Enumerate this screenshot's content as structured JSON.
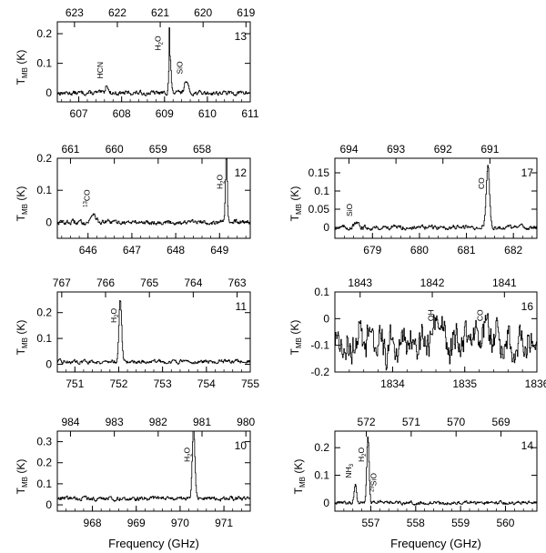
{
  "figure": {
    "xlabel": "Frequency (GHz)",
    "ylabel_main": "T",
    "ylabel_sub": "MB",
    "ylabel_unit": "(K)"
  },
  "chart_data": [
    {
      "id": "panel-13",
      "type": "line",
      "band": "13",
      "xlim": [
        606.5,
        611
      ],
      "ylim": [
        -0.03,
        0.24
      ],
      "xticks": [
        607,
        608,
        609,
        610,
        611
      ],
      "yticks": [
        0,
        0.1,
        0.2
      ],
      "yticklabels": [
        "0",
        "0.1",
        "0.2"
      ],
      "top_ticks": [
        {
          "label": "623",
          "x": 606.9
        },
        {
          "label": "622",
          "x": 607.9
        },
        {
          "label": "621",
          "x": 608.9
        },
        {
          "label": "620",
          "x": 609.9
        },
        {
          "label": "619",
          "x": 610.9
        }
      ],
      "baseline": 0,
      "noise": 0.006,
      "lines": [
        {
          "x": 607.65,
          "peak": 0.03,
          "width": 0.03,
          "label": "HCN"
        },
        {
          "x": 609.12,
          "peak": 0.125,
          "width": 0.025,
          "label": "H2O",
          "spike": 0.22
        },
        {
          "x": 609.5,
          "peak": 0.045,
          "width": 0.04,
          "label": "SiO"
        }
      ]
    },
    {
      "id": "panel-12",
      "type": "line",
      "band": "12",
      "xlim": [
        645.3,
        649.7
      ],
      "ylim": [
        -0.05,
        0.2
      ],
      "xticks": [
        646,
        647,
        648,
        649
      ],
      "yticks": [
        0,
        0.1,
        0.2
      ],
      "yticklabels": [
        "0",
        "0.1",
        "0.2"
      ],
      "top_ticks": [
        {
          "label": "661",
          "x": 645.6
        },
        {
          "label": "660",
          "x": 646.6
        },
        {
          "label": "659",
          "x": 647.6
        },
        {
          "label": "658",
          "x": 648.6
        }
      ],
      "baseline": 0,
      "noise": 0.006,
      "lines": [
        {
          "x": 646.12,
          "peak": 0.03,
          "width": 0.05,
          "label": "13CO"
        },
        {
          "x": 649.15,
          "peak": 0.2,
          "width": 0.02,
          "label": "H2O"
        }
      ]
    },
    {
      "id": "panel-17",
      "type": "line",
      "band": "17",
      "xlim": [
        678.2,
        682.5
      ],
      "ylim": [
        -0.03,
        0.19
      ],
      "xticks": [
        679,
        680,
        681,
        682
      ],
      "yticks": [
        0,
        0.05,
        0.1,
        0.15
      ],
      "yticklabels": [
        "0",
        "0.05",
        "0.1",
        "0.15"
      ],
      "top_ticks": [
        {
          "label": "694",
          "x": 678.5
        },
        {
          "label": "693",
          "x": 679.5
        },
        {
          "label": "692",
          "x": 680.5
        },
        {
          "label": "691",
          "x": 681.5
        }
      ],
      "baseline": 0,
      "noise": 0.005,
      "lines": [
        {
          "x": 678.65,
          "peak": 0.01,
          "width": 0.05,
          "label": "SiO"
        },
        {
          "x": 681.45,
          "peak": 0.17,
          "width": 0.035,
          "label": "CO"
        }
      ]
    },
    {
      "id": "panel-11",
      "type": "line",
      "band": "11",
      "xlim": [
        750.6,
        755
      ],
      "ylim": [
        -0.03,
        0.28
      ],
      "xticks": [
        751,
        752,
        753,
        754,
        755
      ],
      "yticks": [
        0,
        0.1,
        0.2
      ],
      "yticklabels": [
        "0",
        "0.1",
        "0.2"
      ],
      "top_ticks": [
        {
          "label": "767",
          "x": 750.7
        },
        {
          "label": "766",
          "x": 751.7
        },
        {
          "label": "765",
          "x": 752.7
        },
        {
          "label": "764",
          "x": 753.7
        },
        {
          "label": "763",
          "x": 754.7
        }
      ],
      "baseline": 0.01,
      "noise": 0.006,
      "lines": [
        {
          "x": 752.03,
          "peak": 0.245,
          "width": 0.03,
          "label": "H2O"
        }
      ]
    },
    {
      "id": "panel-16",
      "type": "line",
      "band": "16",
      "xlim": [
        1833.2,
        1836
      ],
      "ylim": [
        -0.2,
        0.1
      ],
      "xticks": [
        1834,
        1835,
        1836
      ],
      "yticks": [
        -0.2,
        -0.1,
        0,
        0.1
      ],
      "yticklabels": [
        "-0.2",
        "-0.1",
        "0",
        "0.1"
      ],
      "top_ticks": [
        {
          "label": "1843",
          "x": 1833.55
        },
        {
          "label": "1842",
          "x": 1834.55
        },
        {
          "label": "1841",
          "x": 1835.55
        }
      ],
      "baseline": -0.09,
      "noise": 0.04,
      "lines": [
        {
          "x": 1834.62,
          "peak": 0.06,
          "width": 0.05,
          "label": "OH"
        },
        {
          "x": 1835.3,
          "peak": 0.06,
          "width": 0.06,
          "label": "CO"
        }
      ]
    },
    {
      "id": "panel-10",
      "type": "line",
      "band": "10",
      "xlim": [
        967.2,
        971.6
      ],
      "ylim": [
        -0.03,
        0.35
      ],
      "xticks": [
        968,
        969,
        970,
        971
      ],
      "yticks": [
        0,
        0.1,
        0.2,
        0.3
      ],
      "yticklabels": [
        "0",
        "0.1",
        "0.2",
        "0.3"
      ],
      "top_ticks": [
        {
          "label": "984",
          "x": 967.5
        },
        {
          "label": "983",
          "x": 968.5
        },
        {
          "label": "982",
          "x": 969.5
        },
        {
          "label": "981",
          "x": 970.5
        },
        {
          "label": "980",
          "x": 971.5
        }
      ],
      "baseline": 0.03,
      "noise": 0.008,
      "lines": [
        {
          "x": 970.3,
          "peak": 0.33,
          "width": 0.03,
          "label": "H2O"
        }
      ]
    },
    {
      "id": "panel-14",
      "type": "line",
      "band": "14",
      "xlim": [
        556.2,
        560.7
      ],
      "ylim": [
        -0.03,
        0.26
      ],
      "xticks": [
        557,
        558,
        559,
        560
      ],
      "yticks": [
        0,
        0.1,
        0.2
      ],
      "yticklabels": [
        "0",
        "0.1",
        "0.2"
      ],
      "top_ticks": [
        {
          "label": "572",
          "x": 556.9
        },
        {
          "label": "571",
          "x": 557.9
        },
        {
          "label": "570",
          "x": 558.9
        },
        {
          "label": "569",
          "x": 559.9
        }
      ],
      "baseline": 0,
      "noise": 0.005,
      "lines": [
        {
          "x": 556.65,
          "peak": 0.07,
          "width": 0.025,
          "label": "NH3"
        },
        {
          "x": 556.93,
          "peak": 0.24,
          "width": 0.025,
          "label": "H2O"
        },
        {
          "x": 557.2,
          "peak": 0.006,
          "width": 0.05,
          "label": "29SiO"
        }
      ]
    }
  ]
}
